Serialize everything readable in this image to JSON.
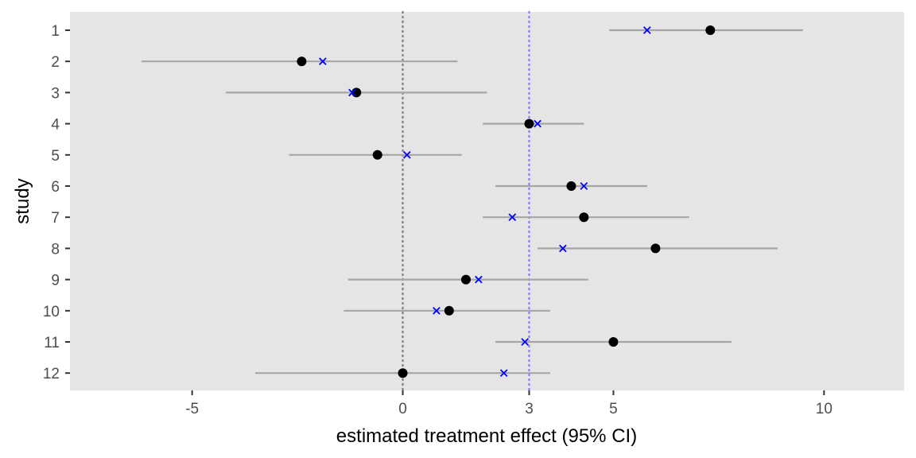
{
  "chart_data": {
    "type": "forest",
    "xlabel": "estimated treatment effect (95% CI)",
    "ylabel": "study",
    "xlim": [
      -7.9,
      11.9
    ],
    "x_ticks": [
      {
        "value": -5,
        "label": "-5"
      },
      {
        "value": 0,
        "label": "0"
      },
      {
        "value": 3,
        "label": "3"
      },
      {
        "value": 5,
        "label": "5"
      },
      {
        "value": 10,
        "label": "10"
      }
    ],
    "reference_lines": [
      {
        "value": 0,
        "color": "#808080",
        "style": "dotted"
      },
      {
        "value": 3,
        "color": "#8080ff",
        "style": "dotted"
      }
    ],
    "grid": false,
    "panel_background": "#e5e5e5",
    "colors": {
      "ci": "#a6a6a6",
      "estimate": "#000000",
      "shrunken": "#0000ff"
    },
    "studies": [
      {
        "label": "1",
        "estimate": 7.3,
        "lower": 4.9,
        "upper": 9.5,
        "shrunken": 5.8
      },
      {
        "label": "2",
        "estimate": -2.4,
        "lower": -6.2,
        "upper": 1.3,
        "shrunken": -1.9
      },
      {
        "label": "3",
        "estimate": -1.1,
        "lower": -4.2,
        "upper": 2.0,
        "shrunken": -1.2
      },
      {
        "label": "4",
        "estimate": 3.0,
        "lower": 1.9,
        "upper": 4.3,
        "shrunken": 3.2
      },
      {
        "label": "5",
        "estimate": -0.6,
        "lower": -2.7,
        "upper": 1.4,
        "shrunken": 0.1
      },
      {
        "label": "6",
        "estimate": 4.0,
        "lower": 2.2,
        "upper": 5.8,
        "shrunken": 4.3
      },
      {
        "label": "7",
        "estimate": 4.3,
        "lower": 1.9,
        "upper": 6.8,
        "shrunken": 2.6
      },
      {
        "label": "8",
        "estimate": 6.0,
        "lower": 3.2,
        "upper": 8.9,
        "shrunken": 3.8
      },
      {
        "label": "9",
        "estimate": 1.5,
        "lower": -1.3,
        "upper": 4.4,
        "shrunken": 1.8
      },
      {
        "label": "10",
        "estimate": 1.1,
        "lower": -1.4,
        "upper": 3.5,
        "shrunken": 0.8
      },
      {
        "label": "11",
        "estimate": 5.0,
        "lower": 2.2,
        "upper": 7.8,
        "shrunken": 2.9
      },
      {
        "label": "12",
        "estimate": 0.0,
        "lower": -3.5,
        "upper": 3.5,
        "shrunken": 2.4
      }
    ]
  }
}
